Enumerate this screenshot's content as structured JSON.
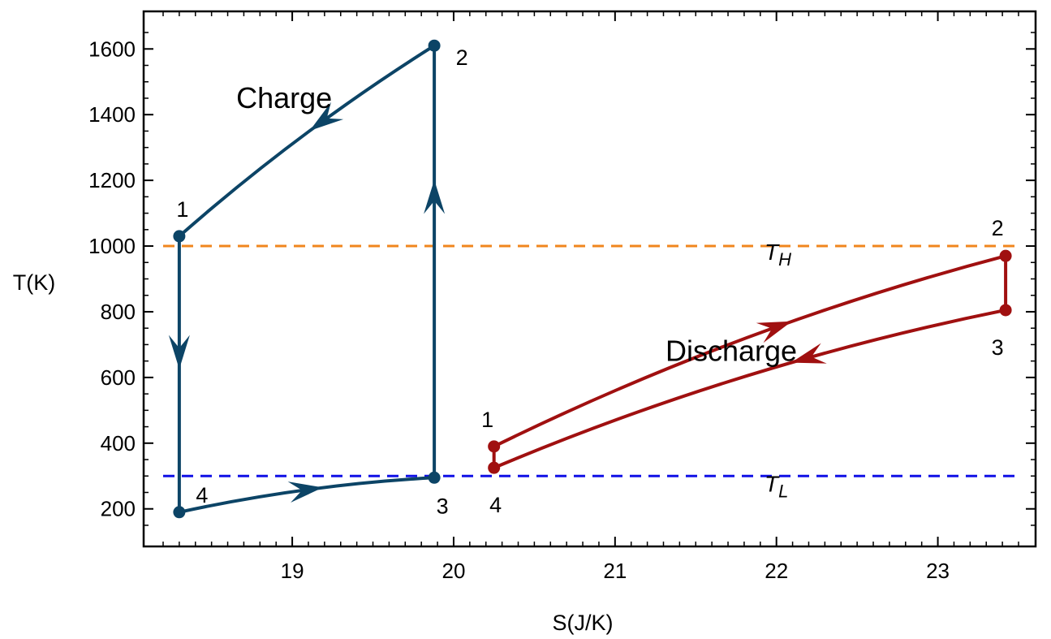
{
  "chart_data": {
    "type": "line",
    "title": "",
    "xlabel": "S(J/K)",
    "ylabel": "T(K)",
    "xlim": [
      18.2,
      23.5
    ],
    "ylim": [
      140,
      1660
    ],
    "xticks": [
      19,
      20,
      21,
      22,
      23
    ],
    "yticks": [
      200,
      400,
      600,
      800,
      1000,
      1200,
      1400,
      1600
    ],
    "grid": false,
    "reference_lines": [
      {
        "name": "T_H",
        "label_main": "T",
        "label_sub": "H",
        "y": 1000,
        "color": "#F0861E",
        "style": "dashed"
      },
      {
        "name": "T_L",
        "label_main": "T",
        "label_sub": "L",
        "y": 300,
        "color": "#1010E6",
        "style": "dashed"
      }
    ],
    "series": [
      {
        "name": "Charge",
        "label": "Charge",
        "color": "#0C4466",
        "states": [
          {
            "label": "1",
            "s": 18.3,
            "t": 1030
          },
          {
            "label": "2",
            "s": 19.88,
            "t": 1610
          },
          {
            "label": "3",
            "s": 19.88,
            "t": 295
          },
          {
            "label": "4",
            "s": 18.3,
            "t": 190
          }
        ],
        "paths": [
          {
            "from": "2",
            "to": "1",
            "curve": "bulge",
            "bulge": 0.04,
            "arrow_at": 0.42
          },
          {
            "from": "1",
            "to": "4",
            "curve": "line",
            "arrow_at": 0.42
          },
          {
            "from": "4",
            "to": "3",
            "curve": "bulge",
            "bulge": 0.04,
            "arrow_at": 0.5
          },
          {
            "from": "3",
            "to": "2",
            "curve": "line",
            "arrow_at": 0.65
          }
        ]
      },
      {
        "name": "Discharge",
        "label": "Discharge",
        "color": "#A01010",
        "states": [
          {
            "label": "1",
            "s": 20.25,
            "t": 390
          },
          {
            "label": "2",
            "s": 23.42,
            "t": 970
          },
          {
            "label": "3",
            "s": 23.42,
            "t": 805
          },
          {
            "label": "4",
            "s": 20.25,
            "t": 325
          }
        ],
        "paths": [
          {
            "from": "1",
            "to": "2",
            "curve": "bulge",
            "bulge": 0.05,
            "arrow_at": 0.56
          },
          {
            "from": "2",
            "to": "3",
            "curve": "line"
          },
          {
            "from": "3",
            "to": "4",
            "curve": "bulge",
            "bulge": 0.05,
            "arrow_at": 0.38
          },
          {
            "from": "4",
            "to": "1",
            "curve": "line"
          }
        ]
      }
    ],
    "annotations": [
      {
        "text": "Charge",
        "s": 18.95,
        "t": 1420
      },
      {
        "text": "Discharge",
        "s": 21.72,
        "t": 650
      }
    ]
  }
}
